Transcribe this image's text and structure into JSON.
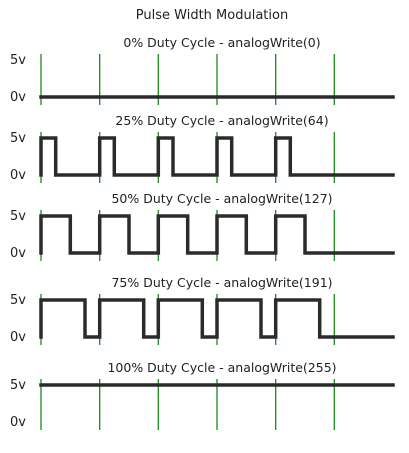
{
  "chart_data": {
    "type": "line",
    "title": "Pulse Width Modulation",
    "y_labels": [
      "5v",
      "0v"
    ],
    "period_marks": 6,
    "colors": {
      "signal": "#2b2b2b",
      "period_marker": "#1a8a1a",
      "text": "#222222"
    },
    "panels": [
      {
        "title": "0% Duty Cycle - analogWrite(0)",
        "duty_cycle": 0,
        "analog_write": 0,
        "cycles": 5
      },
      {
        "title": "25% Duty Cycle - analogWrite(64)",
        "duty_cycle": 0.25,
        "analog_write": 64,
        "cycles": 5
      },
      {
        "title": "50% Duty Cycle - analogWrite(127)",
        "duty_cycle": 0.5,
        "analog_write": 127,
        "cycles": 5
      },
      {
        "title": "75% Duty Cycle - analogWrite(191)",
        "duty_cycle": 0.75,
        "analog_write": 191,
        "cycles": 5
      },
      {
        "title": "100% Duty Cycle - analogWrite(255)",
        "duty_cycle": 1,
        "analog_write": 255,
        "cycles": 5
      }
    ]
  }
}
